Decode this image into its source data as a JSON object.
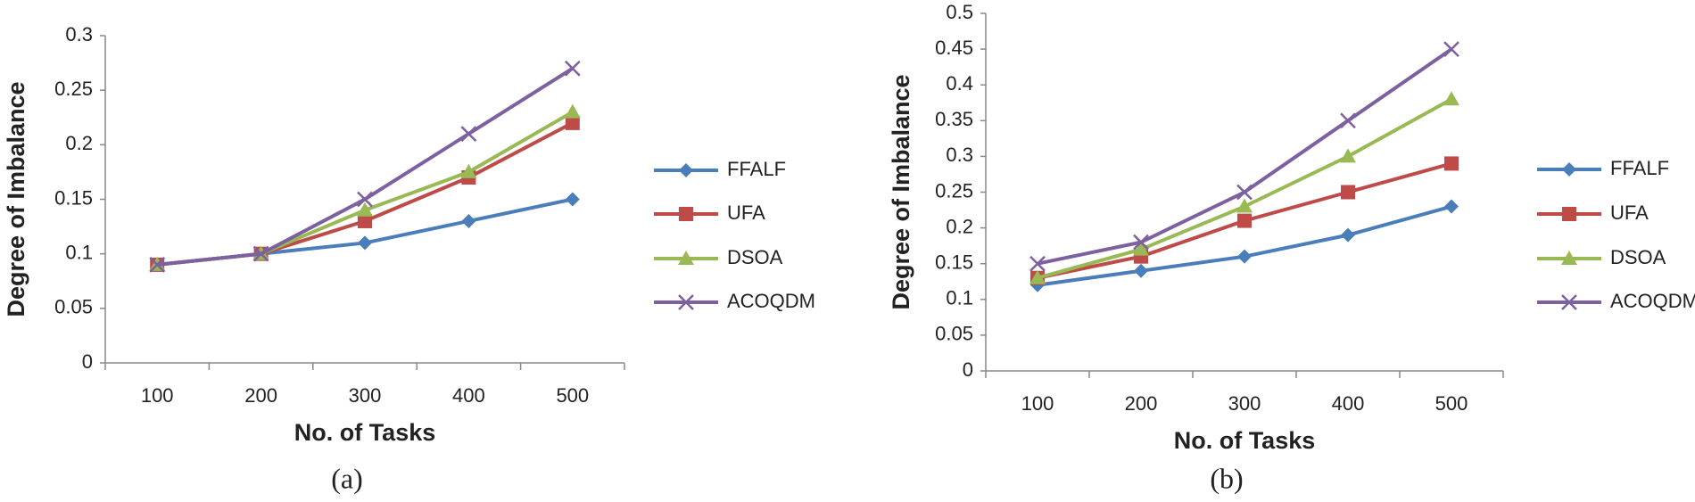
{
  "chart_data": [
    {
      "type": "line",
      "xlabel": "No. of Tasks",
      "ylabel": "Degree of Imbalance",
      "caption": "(a)",
      "categories": [
        "100",
        "200",
        "300",
        "400",
        "500"
      ],
      "ylim": [
        0,
        0.3
      ],
      "yticks": [
        0,
        0.05,
        0.1,
        0.15,
        0.2,
        0.25,
        0.3
      ],
      "series": [
        {
          "name": "FFALF",
          "color": "#4a7ebb",
          "marker": "diamond",
          "values": [
            0.09,
            0.1,
            0.11,
            0.13,
            0.15
          ]
        },
        {
          "name": "UFA",
          "color": "#be4b48",
          "marker": "square",
          "values": [
            0.09,
            0.1,
            0.13,
            0.17,
            0.22
          ]
        },
        {
          "name": "DSOA",
          "color": "#98b954",
          "marker": "triangle",
          "values": [
            0.09,
            0.1,
            0.14,
            0.175,
            0.23
          ]
        },
        {
          "name": "ACOQDM",
          "color": "#7d60a0",
          "marker": "x",
          "values": [
            0.09,
            0.1,
            0.15,
            0.21,
            0.27
          ]
        }
      ]
    },
    {
      "type": "line",
      "xlabel": "No. of Tasks",
      "ylabel": "Degree of Imbalance",
      "caption": "(b)",
      "categories": [
        "100",
        "200",
        "300",
        "400",
        "500"
      ],
      "ylim": [
        0,
        0.5
      ],
      "yticks": [
        0,
        0.05,
        0.1,
        0.15,
        0.2,
        0.25,
        0.3,
        0.35,
        0.4,
        0.45,
        0.5
      ],
      "series": [
        {
          "name": "FFALF",
          "color": "#4a7ebb",
          "marker": "diamond",
          "values": [
            0.12,
            0.14,
            0.16,
            0.19,
            0.23
          ]
        },
        {
          "name": "UFA",
          "color": "#be4b48",
          "marker": "square",
          "values": [
            0.13,
            0.16,
            0.21,
            0.25,
            0.29
          ]
        },
        {
          "name": "DSOA",
          "color": "#98b954",
          "marker": "triangle",
          "values": [
            0.13,
            0.17,
            0.23,
            0.3,
            0.38
          ]
        },
        {
          "name": "ACOQDM",
          "color": "#7d60a0",
          "marker": "x",
          "values": [
            0.15,
            0.18,
            0.25,
            0.35,
            0.45
          ]
        }
      ]
    }
  ]
}
